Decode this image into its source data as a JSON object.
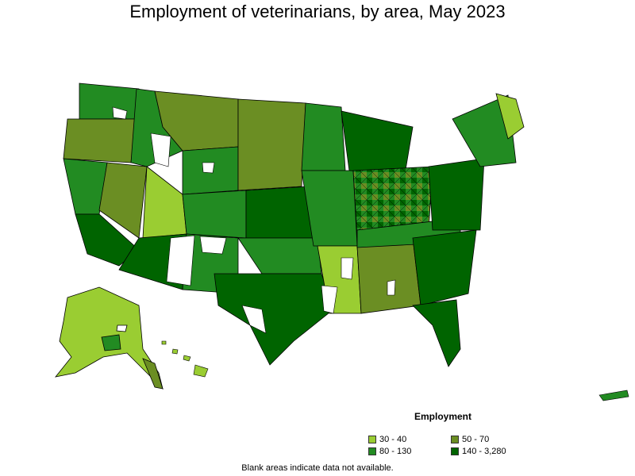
{
  "title": "Employment of veterinarians, by area, May 2023",
  "note": "Blank areas indicate data not available.",
  "legend": {
    "title": "Employment",
    "items": [
      {
        "label": "30 - 40",
        "color": "#9acd32"
      },
      {
        "label": "50 - 70",
        "color": "#6b8e23"
      },
      {
        "label": "80 - 130",
        "color": "#228b22"
      },
      {
        "label": "140 - 3,280",
        "color": "#006400"
      }
    ]
  },
  "colors": {
    "c1": "#9acd32",
    "c2": "#6b8e23",
    "c3": "#228b22",
    "c4": "#006400",
    "blank": "#ffffff",
    "border": "#000000"
  }
}
